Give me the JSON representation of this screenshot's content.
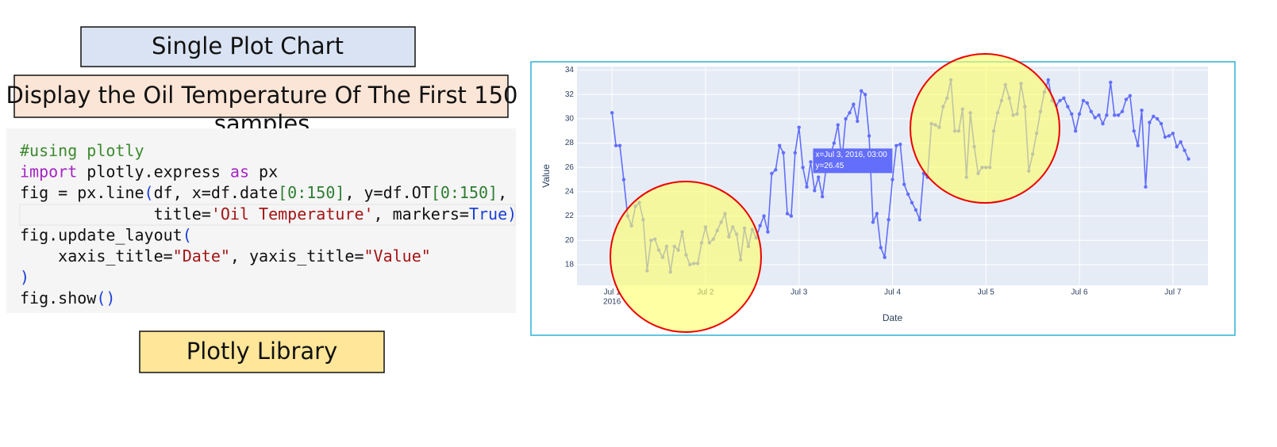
{
  "labels": {
    "top": "Single Plot Chart",
    "task": "Display the Oil Temperature Of The First 150 samples",
    "library": "Plotly Library"
  },
  "code": {
    "lines": [
      [
        {
          "t": "#using plotly",
          "c": "#3c8a2e"
        }
      ],
      [
        {
          "t": "import",
          "c": "#a626c4"
        },
        {
          "t": " plotly.express ",
          "c": "#111111"
        },
        {
          "t": "as",
          "c": "#a626c4"
        },
        {
          "t": " px",
          "c": "#111111"
        }
      ],
      [
        {
          "t": "fig = px.line",
          "c": "#111111"
        },
        {
          "t": "(",
          "c": "#1a3fd6"
        },
        {
          "t": "df, x=df.date",
          "c": "#111111"
        },
        {
          "t": "[0:150]",
          "c": "#2e7d32"
        },
        {
          "t": ", y=df.OT",
          "c": "#111111"
        },
        {
          "t": "[0:150]",
          "c": "#2e7d32"
        },
        {
          "t": ",",
          "c": "#111111"
        }
      ],
      [
        {
          "t": "              title=",
          "c": "#111111"
        },
        {
          "t": "'Oil Temperature'",
          "c": "#a31515"
        },
        {
          "t": ", markers=",
          "c": "#111111"
        },
        {
          "t": "True",
          "c": "#1a3fd6"
        },
        {
          "t": ")",
          "c": "#1a3fd6"
        }
      ],
      [
        {
          "t": "fig.update_layout",
          "c": "#111111"
        },
        {
          "t": "(",
          "c": "#1a3fd6"
        }
      ],
      [
        {
          "t": "    xaxis_title=",
          "c": "#111111"
        },
        {
          "t": "\"Date\"",
          "c": "#a31515"
        },
        {
          "t": ", yaxis_title=",
          "c": "#111111"
        },
        {
          "t": "\"Value\"",
          "c": "#a31515"
        }
      ],
      [
        {
          "t": ")",
          "c": "#1a3fd6"
        }
      ],
      [
        {
          "t": "fig.show",
          "c": "#111111"
        },
        {
          "t": "()",
          "c": "#1a3fd6"
        }
      ]
    ]
  },
  "chart_data": {
    "type": "line",
    "x_title": "Date",
    "y_title": "Value",
    "x_year_label": "2016",
    "xlim": [
      "2016-06-30 15:00",
      "2016-07-07 09:00"
    ],
    "ylim": [
      16.3,
      34.3
    ],
    "xticks": [
      {
        "value": "2016-07-01 00:00",
        "label": "Jul 1"
      },
      {
        "value": "2016-07-02 00:00",
        "label": "Jul 2"
      },
      {
        "value": "2016-07-03 00:00",
        "label": "Jul 3"
      },
      {
        "value": "2016-07-04 00:00",
        "label": "Jul 4"
      },
      {
        "value": "2016-07-05 00:00",
        "label": "Jul 5"
      },
      {
        "value": "2016-07-06 00:00",
        "label": "Jul 6"
      },
      {
        "value": "2016-07-07 00:00",
        "label": "Jul 7"
      }
    ],
    "yticks": [
      18,
      20,
      22,
      24,
      26,
      28,
      30,
      32,
      34
    ],
    "grid": true,
    "plot_bg": "#e5ecf6",
    "hover": {
      "index": 51,
      "x_text": "x=Jul 3, 2016, 03:00",
      "y_text": "y=26.45",
      "color": "#636efa"
    },
    "x": [
      "2016-07-01 00:00",
      "2016-07-01 01:00",
      "2016-07-01 02:00",
      "2016-07-01 03:00",
      "2016-07-01 04:00",
      "2016-07-01 05:00",
      "2016-07-01 06:00",
      "2016-07-01 07:00",
      "2016-07-01 08:00",
      "2016-07-01 09:00",
      "2016-07-01 10:00",
      "2016-07-01 11:00",
      "2016-07-01 12:00",
      "2016-07-01 13:00",
      "2016-07-01 14:00",
      "2016-07-01 15:00",
      "2016-07-01 16:00",
      "2016-07-01 17:00",
      "2016-07-01 18:00",
      "2016-07-01 19:00",
      "2016-07-01 20:00",
      "2016-07-01 21:00",
      "2016-07-01 22:00",
      "2016-07-01 23:00",
      "2016-07-02 00:00",
      "2016-07-02 01:00",
      "2016-07-02 02:00",
      "2016-07-02 03:00",
      "2016-07-02 04:00",
      "2016-07-02 05:00",
      "2016-07-02 06:00",
      "2016-07-02 07:00",
      "2016-07-02 08:00",
      "2016-07-02 09:00",
      "2016-07-02 10:00",
      "2016-07-02 11:00",
      "2016-07-02 12:00",
      "2016-07-02 13:00",
      "2016-07-02 14:00",
      "2016-07-02 15:00",
      "2016-07-02 16:00",
      "2016-07-02 17:00",
      "2016-07-02 18:00",
      "2016-07-02 19:00",
      "2016-07-02 20:00",
      "2016-07-02 21:00",
      "2016-07-02 22:00",
      "2016-07-02 23:00",
      "2016-07-03 00:00",
      "2016-07-03 01:00",
      "2016-07-03 02:00",
      "2016-07-03 03:00",
      "2016-07-03 04:00",
      "2016-07-03 05:00",
      "2016-07-03 06:00",
      "2016-07-03 07:00",
      "2016-07-03 08:00",
      "2016-07-03 09:00",
      "2016-07-03 10:00",
      "2016-07-03 11:00",
      "2016-07-03 12:00",
      "2016-07-03 13:00",
      "2016-07-03 14:00",
      "2016-07-03 15:00",
      "2016-07-03 16:00",
      "2016-07-03 17:00",
      "2016-07-03 18:00",
      "2016-07-03 19:00",
      "2016-07-03 20:00",
      "2016-07-03 21:00",
      "2016-07-03 22:00",
      "2016-07-03 23:00",
      "2016-07-04 00:00",
      "2016-07-04 01:00",
      "2016-07-04 02:00",
      "2016-07-04 03:00",
      "2016-07-04 04:00",
      "2016-07-04 05:00",
      "2016-07-04 06:00",
      "2016-07-04 07:00",
      "2016-07-04 08:00",
      "2016-07-04 09:00",
      "2016-07-04 10:00",
      "2016-07-04 11:00",
      "2016-07-04 12:00",
      "2016-07-04 13:00",
      "2016-07-04 14:00",
      "2016-07-04 15:00",
      "2016-07-04 16:00",
      "2016-07-04 17:00",
      "2016-07-04 18:00",
      "2016-07-04 19:00",
      "2016-07-04 20:00",
      "2016-07-04 21:00",
      "2016-07-04 22:00",
      "2016-07-04 23:00",
      "2016-07-05 00:00",
      "2016-07-05 01:00",
      "2016-07-05 02:00",
      "2016-07-05 03:00",
      "2016-07-05 04:00",
      "2016-07-05 05:00",
      "2016-07-05 06:00",
      "2016-07-05 07:00",
      "2016-07-05 08:00",
      "2016-07-05 09:00",
      "2016-07-05 10:00",
      "2016-07-05 11:00",
      "2016-07-05 12:00",
      "2016-07-05 13:00",
      "2016-07-05 14:00",
      "2016-07-05 15:00",
      "2016-07-05 16:00",
      "2016-07-05 17:00",
      "2016-07-05 18:00",
      "2016-07-05 19:00",
      "2016-07-05 20:00",
      "2016-07-05 21:00",
      "2016-07-05 22:00",
      "2016-07-05 23:00",
      "2016-07-06 00:00",
      "2016-07-06 01:00",
      "2016-07-06 02:00",
      "2016-07-06 03:00",
      "2016-07-06 04:00",
      "2016-07-06 05:00",
      "2016-07-06 06:00",
      "2016-07-06 07:00",
      "2016-07-06 08:00",
      "2016-07-06 09:00",
      "2016-07-06 10:00",
      "2016-07-06 11:00",
      "2016-07-06 12:00",
      "2016-07-06 13:00",
      "2016-07-06 14:00",
      "2016-07-06 15:00",
      "2016-07-06 16:00",
      "2016-07-06 17:00",
      "2016-07-06 18:00",
      "2016-07-06 19:00",
      "2016-07-06 20:00",
      "2016-07-06 21:00",
      "2016-07-06 22:00",
      "2016-07-06 23:00",
      "2016-07-07 00:00",
      "2016-07-07 01:00",
      "2016-07-07 02:00",
      "2016-07-07 03:00",
      "2016-07-07 04:00"
    ],
    "series": [
      {
        "color": "#636efa",
        "values": [
          30.5,
          27.8,
          27.8,
          25,
          22,
          21.2,
          22.8,
          23.1,
          21.7,
          17.5,
          20,
          20.1,
          19.2,
          18.6,
          19.5,
          17.4,
          19.5,
          19.2,
          20.7,
          18.8,
          18,
          18.1,
          18.1,
          19.8,
          21.1,
          19.8,
          20.1,
          20.8,
          21.5,
          22.2,
          20.3,
          21.1,
          20.5,
          18.4,
          21,
          19.5,
          20.9,
          20.2,
          21.2,
          22,
          20.7,
          25.5,
          25.8,
          27.8,
          27.2,
          22.2,
          22,
          27.2,
          29.3,
          26,
          24.4,
          26.45,
          24.1,
          25.2,
          23.6,
          26,
          27,
          28,
          29.5,
          26.5,
          30,
          30.5,
          31.2,
          29.8,
          32.3,
          32,
          28.6,
          21.5,
          22.2,
          19.4,
          18.6,
          21.7,
          25,
          27.8,
          27.9,
          24.6,
          23.8,
          23.1,
          22.5,
          21.7,
          25.5,
          25.2,
          29.6,
          29.5,
          29.3,
          31,
          31.7,
          33.2,
          29,
          29,
          30.8,
          25.2,
          30.5,
          27.7,
          25.5,
          26,
          26,
          26,
          29,
          30.5,
          31.5,
          32.8,
          31.7,
          30.3,
          30.4,
          32.9,
          31,
          25.7,
          27.1,
          28.8,
          30.6,
          32.2,
          33.2,
          31.5,
          31.1,
          31.5,
          31.7,
          31,
          30.4,
          29,
          30.4,
          31.5,
          31.3,
          30.6,
          30.1,
          30.3,
          29.6,
          30.3,
          33,
          30.3,
          30.3,
          30.6,
          31.6,
          31.9,
          29,
          27.8,
          30.7,
          24.4,
          29.7,
          30.2,
          30,
          29.6,
          28.5,
          28.6,
          28.8,
          27.7,
          28.1,
          27.4,
          26.7
        ]
      }
    ]
  }
}
